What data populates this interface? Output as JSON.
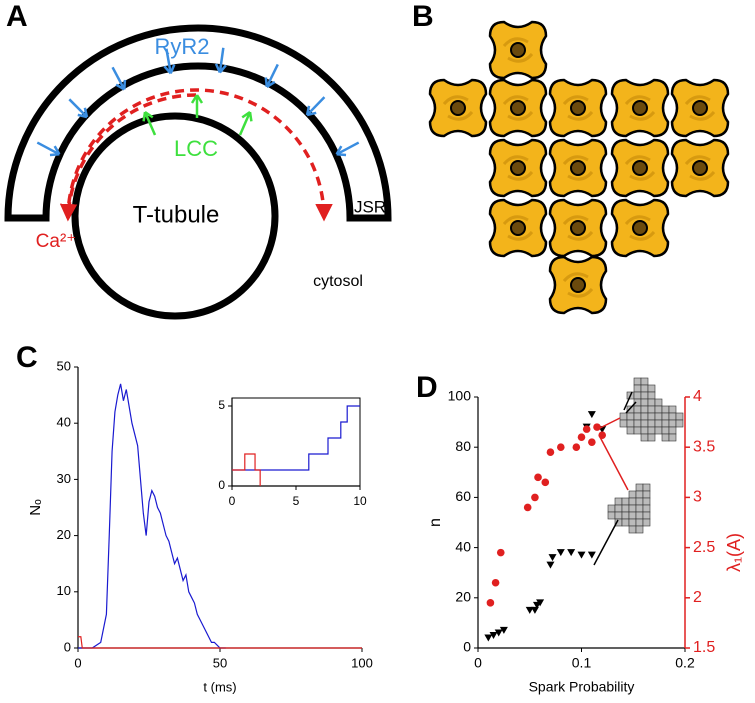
{
  "panel_a": {
    "label": "A",
    "ryr2": "RyR2",
    "lcc": "LCC",
    "t_tubule": "T-tubule",
    "jsr": "JSR",
    "calcium": "Ca²⁺",
    "cytosol": "cytosol"
  },
  "panel_b": {
    "label": "B"
  },
  "chart_data": [
    {
      "type": "line",
      "panel_label": "C",
      "xlabel": "t (ms)",
      "ylabel": "Nₒ",
      "xlim": [
        0,
        100
      ],
      "xticks": [
        0,
        50,
        100
      ],
      "ylim": [
        0,
        50
      ],
      "yticks": [
        0,
        10,
        20,
        30,
        40,
        50
      ],
      "series": [
        {
          "color": "#1a1ad0",
          "x": [
            0,
            5,
            8,
            10,
            11,
            12,
            13,
            14,
            15,
            16,
            17,
            18,
            19,
            20,
            21,
            22,
            23,
            24,
            25,
            26,
            27,
            28,
            29,
            30,
            31,
            32,
            33,
            34,
            35,
            36,
            37,
            38,
            39,
            40,
            41,
            42,
            43,
            44,
            45,
            46,
            47,
            48,
            50,
            52
          ],
          "values": [
            0,
            0,
            1,
            6,
            20,
            35,
            42,
            45,
            47,
            44,
            46,
            43,
            40,
            38,
            36,
            30,
            24,
            20,
            26,
            28,
            27,
            25,
            24,
            22,
            20,
            19,
            17,
            15,
            16,
            14,
            12,
            13,
            10,
            9,
            8,
            6,
            5,
            4,
            3,
            2,
            1,
            1,
            0,
            0
          ]
        },
        {
          "color": "#e02020",
          "x": [
            0,
            1,
            1.5,
            100
          ],
          "values": [
            2,
            2,
            0,
            0
          ]
        }
      ]
    },
    {
      "type": "line",
      "xlim": [
        0,
        10
      ],
      "xticks": [
        0,
        5,
        10
      ],
      "ylim": [
        0,
        5.5
      ],
      "yticks": [
        0,
        5
      ],
      "frame": true,
      "series": [
        {
          "color": "#1a1ad0",
          "x": [
            0,
            6,
            6,
            7.5,
            7.5,
            8.5,
            8.5,
            9,
            9,
            10
          ],
          "values": [
            1,
            1,
            2,
            2,
            3,
            3,
            4,
            4,
            5,
            5
          ]
        },
        {
          "color": "#e02020",
          "x": [
            0,
            1,
            1,
            1.8,
            1.8,
            2.2,
            2.2
          ],
          "values": [
            1,
            1,
            2,
            2,
            1,
            1,
            0
          ]
        }
      ]
    },
    {
      "type": "scatter",
      "panel_label": "D",
      "xlabel": "Spark Probability",
      "ylabel": "n",
      "y2label": "λ₁(A)",
      "y2color": "#e02020",
      "xlim": [
        0,
        0.2
      ],
      "xticks": [
        0,
        0.1,
        0.2
      ],
      "ylim": [
        0,
        100
      ],
      "yticks": [
        0,
        20,
        40,
        60,
        80,
        100
      ],
      "y2lim": [
        1.5,
        4
      ],
      "y2ticks": [
        1.5,
        2,
        2.5,
        3,
        3.5,
        4
      ],
      "series": [
        {
          "color": "#000000",
          "marker": "triangle-down",
          "x": [
            0.01,
            0.015,
            0.02,
            0.025,
            0.05,
            0.055,
            0.057,
            0.06,
            0.07,
            0.072,
            0.08,
            0.09,
            0.1,
            0.11,
            0.105,
            0.11,
            0.12
          ],
          "values": [
            4,
            5,
            6,
            7,
            15,
            15,
            17,
            18,
            33,
            36,
            38,
            38,
            37,
            37,
            88,
            93,
            87
          ]
        },
        {
          "color": "#e02020",
          "marker": "circle",
          "axis": "y2",
          "x": [
            0.012,
            0.017,
            0.022,
            0.048,
            0.055,
            0.058,
            0.065,
            0.07,
            0.08,
            0.095,
            0.1,
            0.105,
            0.11,
            0.115,
            0.12
          ],
          "values": [
            1.95,
            2.15,
            2.45,
            2.9,
            3.0,
            3.2,
            3.15,
            3.45,
            3.5,
            3.5,
            3.6,
            3.68,
            3.55,
            3.7,
            3.62
          ]
        }
      ]
    }
  ]
}
